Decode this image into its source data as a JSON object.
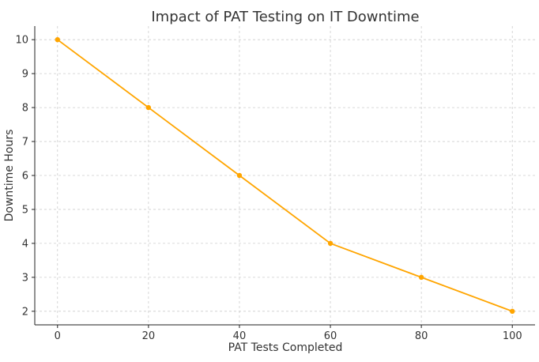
{
  "chart_data": {
    "type": "line",
    "title": "Impact of PAT Testing on IT Downtime",
    "xlabel": "PAT Tests Completed",
    "ylabel": "Downtime Hours",
    "x": [
      0,
      20,
      40,
      60,
      80,
      100
    ],
    "series": [
      {
        "values": [
          10,
          8,
          6,
          4,
          3,
          2
        ],
        "color": "#FFA500",
        "marker": "circle"
      }
    ],
    "xticks": [
      0,
      20,
      40,
      60,
      80,
      100
    ],
    "yticks": [
      2,
      3,
      4,
      5,
      6,
      7,
      8,
      9,
      10
    ],
    "xlim": [
      -5,
      105
    ],
    "ylim": [
      1.6,
      10.4
    ],
    "grid": true,
    "legend": "none"
  }
}
